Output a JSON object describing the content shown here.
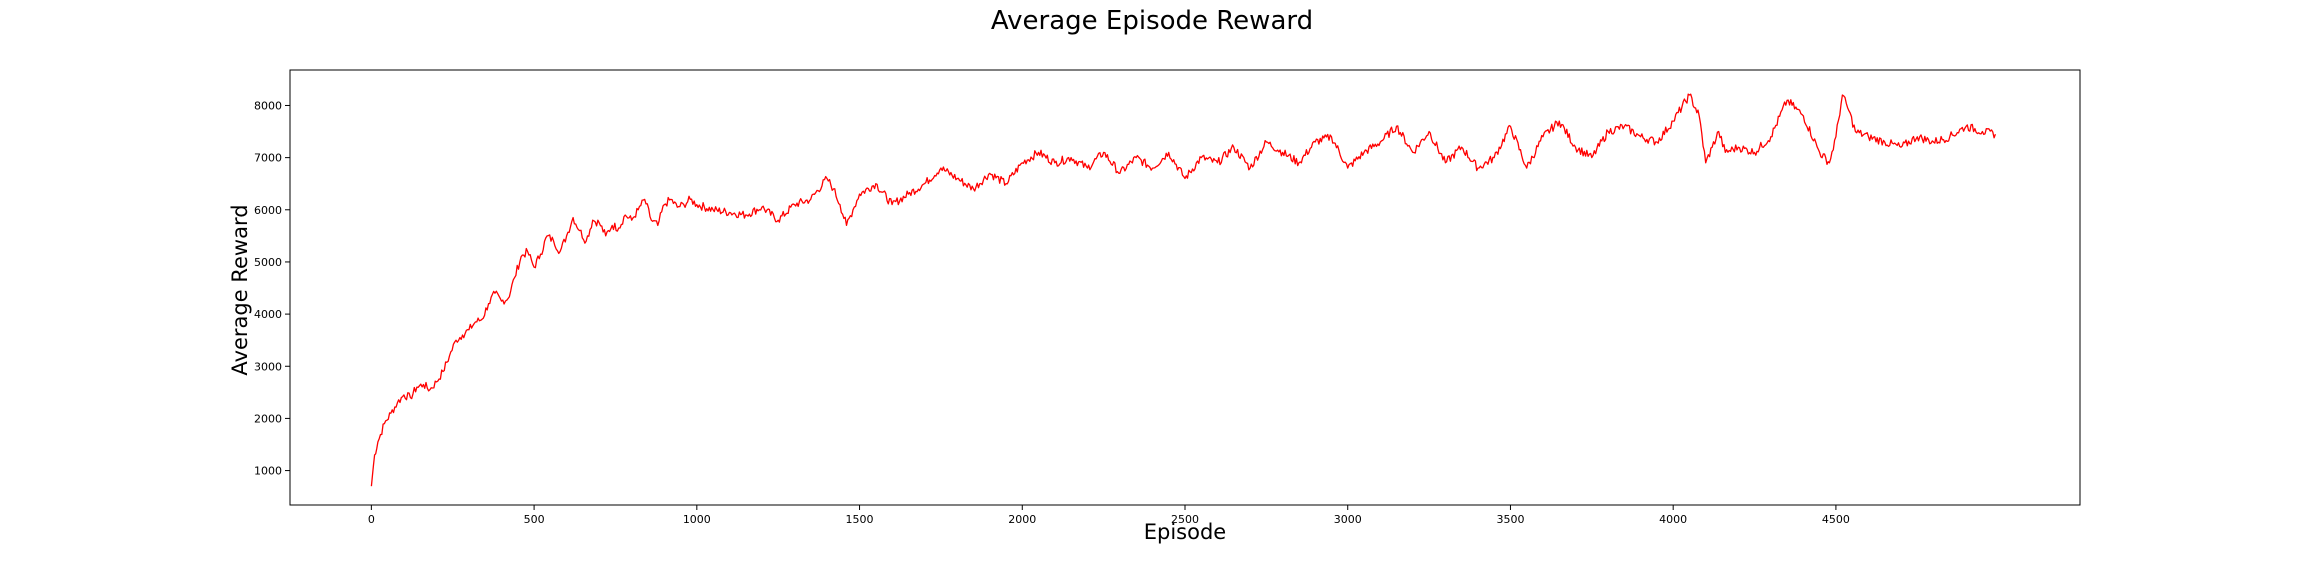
{
  "chart_data": {
    "type": "line",
    "title": "Average Episode Reward",
    "xlabel": "Episode",
    "ylabel": "Average Reward",
    "xlim": [
      -250,
      5250
    ],
    "ylim": [
      340,
      8680
    ],
    "xticks": [
      0,
      500,
      1000,
      1500,
      2000,
      2500,
      3000,
      3500,
      4000,
      4500
    ],
    "yticks": [
      1000,
      2000,
      3000,
      4000,
      5000,
      6000,
      7000,
      8000
    ],
    "grid": false,
    "legend": "none",
    "series": [
      {
        "color": "#ff0000",
        "x": [
          0,
          10,
          20,
          40,
          60,
          80,
          100,
          120,
          140,
          160,
          180,
          200,
          220,
          240,
          260,
          280,
          300,
          320,
          340,
          360,
          380,
          400,
          420,
          440,
          460,
          480,
          500,
          520,
          540,
          560,
          580,
          600,
          620,
          640,
          660,
          680,
          700,
          720,
          740,
          760,
          780,
          800,
          820,
          840,
          860,
          880,
          900,
          920,
          940,
          960,
          980,
          1000,
          1050,
          1100,
          1150,
          1200,
          1250,
          1300,
          1350,
          1400,
          1420,
          1440,
          1460,
          1480,
          1500,
          1550,
          1600,
          1650,
          1700,
          1750,
          1800,
          1850,
          1900,
          1950,
          2000,
          2050,
          2100,
          2150,
          2200,
          2250,
          2300,
          2350,
          2400,
          2450,
          2500,
          2550,
          2600,
          2650,
          2700,
          2750,
          2800,
          2850,
          2900,
          2950,
          3000,
          3050,
          3100,
          3150,
          3200,
          3250,
          3300,
          3350,
          3400,
          3450,
          3500,
          3550,
          3600,
          3650,
          3700,
          3750,
          3800,
          3850,
          3900,
          3950,
          4000,
          4050,
          4080,
          4100,
          4120,
          4140,
          4160,
          4200,
          4250,
          4300,
          4350,
          4400,
          4450,
          4480,
          4500,
          4520,
          4540,
          4560,
          4600,
          4650,
          4700,
          4750,
          4800,
          4850,
          4900,
          4950,
          4990
        ],
        "values": [
          700,
          1300,
          1550,
          1900,
          2100,
          2300,
          2450,
          2400,
          2600,
          2650,
          2550,
          2700,
          2900,
          3200,
          3500,
          3600,
          3700,
          3850,
          3900,
          4200,
          4400,
          4250,
          4300,
          4700,
          5100,
          5200,
          4900,
          5150,
          5500,
          5400,
          5200,
          5500,
          5850,
          5600,
          5400,
          5800,
          5750,
          5500,
          5700,
          5650,
          5900,
          5800,
          6000,
          6200,
          5800,
          5700,
          6100,
          6200,
          6050,
          6100,
          6200,
          6100,
          6000,
          5950,
          5900,
          6050,
          5800,
          6100,
          6200,
          6600,
          6400,
          6100,
          5700,
          6000,
          6300,
          6500,
          6100,
          6300,
          6500,
          6800,
          6600,
          6400,
          6700,
          6500,
          6900,
          7100,
          6900,
          7000,
          6800,
          7100,
          6700,
          7000,
          6800,
          7100,
          6600,
          7000,
          6900,
          7200,
          6800,
          7300,
          7100,
          6900,
          7300,
          7400,
          6800,
          7100,
          7300,
          7600,
          7100,
          7500,
          6900,
          7200,
          6800,
          7000,
          7600,
          6800,
          7400,
          7700,
          7200,
          7000,
          7500,
          7600,
          7400,
          7300,
          7700,
          8200,
          7800,
          6900,
          7200,
          7500,
          7100,
          7200,
          7100,
          7400,
          8100,
          7800,
          7100,
          6900,
          7400,
          8200,
          7900,
          7500,
          7400,
          7300,
          7200,
          7400,
          7300,
          7400,
          7600,
          7500,
          7450
        ]
      }
    ]
  }
}
